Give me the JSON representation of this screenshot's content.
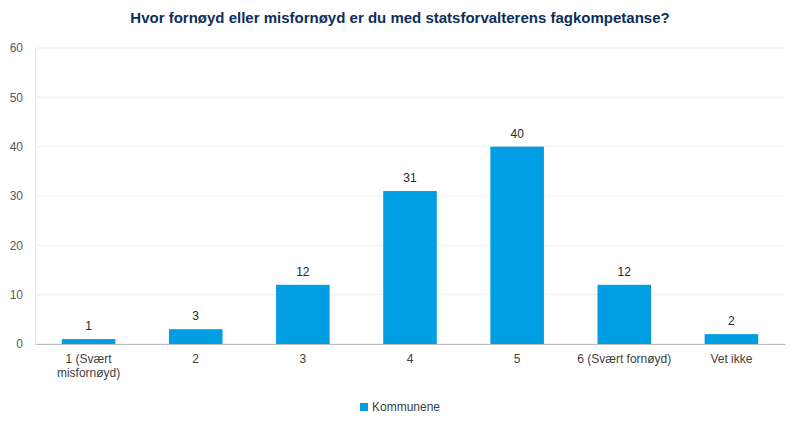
{
  "chart_data": {
    "type": "bar",
    "title": "Hvor fornøyd eller misfornøyd er du med statsforvalterens fagkompetanse?",
    "categories": [
      "1 (Svært misfornøyd)",
      "2",
      "3",
      "4",
      "5",
      "6 (Svært fornøyd)",
      "Vet ikke"
    ],
    "series": [
      {
        "name": "Kommunene",
        "color": "#009fe3",
        "values": [
          1,
          3,
          12,
          31,
          40,
          12,
          2
        ]
      }
    ],
    "ylim": [
      0,
      60
    ],
    "yticks": [
      0,
      10,
      20,
      30,
      40,
      50,
      60
    ],
    "grid": true,
    "data_labels": true,
    "legend": "bottom"
  }
}
